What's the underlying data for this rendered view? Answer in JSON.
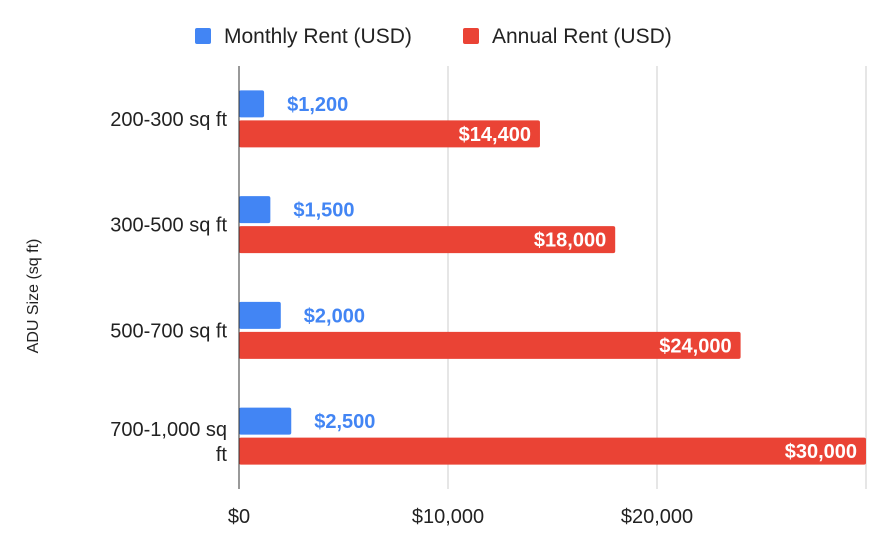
{
  "chart_data": {
    "type": "bar",
    "orientation": "horizontal",
    "title": "",
    "xlabel": "",
    "ylabel": "ADU Size (sq ft)",
    "categories": [
      "200-300 sq ft",
      "300-500 sq ft",
      "500-700 sq ft",
      "700-1,000 sq ft"
    ],
    "series": [
      {
        "name": "Monthly Rent (USD)",
        "color": "#4285f4",
        "values": [
          1200,
          1500,
          2000,
          2500
        ],
        "labels": [
          "$1,200",
          "$1,500",
          "$2,000",
          "$2,500"
        ]
      },
      {
        "name": "Annual Rent (USD)",
        "color": "#ea4335",
        "values": [
          14400,
          18000,
          24000,
          30000
        ],
        "labels": [
          "$14,400",
          "$18,000",
          "$24,000",
          "$30,000"
        ]
      }
    ],
    "xlim": [
      0,
      30000
    ],
    "xticks": [
      0,
      10000,
      20000
    ],
    "xtick_labels": [
      "$0",
      "$10,000",
      "$20,000"
    ],
    "grid": true,
    "legend": "top"
  }
}
